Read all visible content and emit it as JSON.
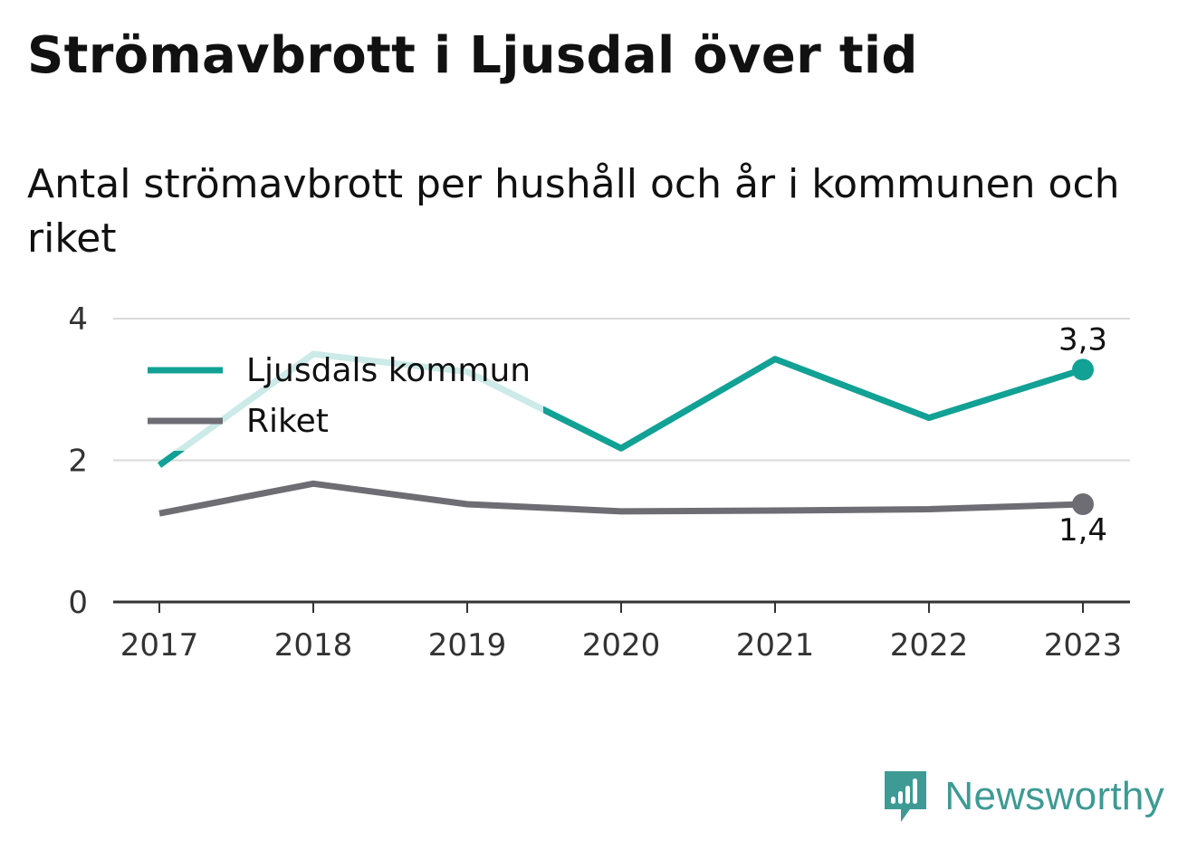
{
  "header": {
    "title": "Strömavbrott i Ljusdal över tid",
    "subtitle": "Antal strömavbrott per hushåll och år i kommunen och riket"
  },
  "chart_data": {
    "type": "line",
    "x": [
      "2017",
      "2018",
      "2019",
      "2020",
      "2021",
      "2022",
      "2023"
    ],
    "series": [
      {
        "name": "Ljusdals kommun",
        "color": "#12a195",
        "values": [
          1.93,
          3.5,
          3.25,
          2.17,
          3.43,
          2.6,
          3.28
        ],
        "end_label": "3,3"
      },
      {
        "name": "Riket",
        "color": "#6e6d73",
        "values": [
          1.25,
          1.67,
          1.38,
          1.28,
          1.29,
          1.31,
          1.38
        ],
        "end_label": "1,4"
      }
    ],
    "y_ticks": [
      "0",
      "2",
      "4"
    ],
    "ylim": [
      0,
      4
    ],
    "grid": true,
    "legend": "top-left"
  },
  "branding": {
    "name": "Newsworthy",
    "logo_icon": "newsworthy-logo-icon",
    "color": "#3e9a94"
  }
}
